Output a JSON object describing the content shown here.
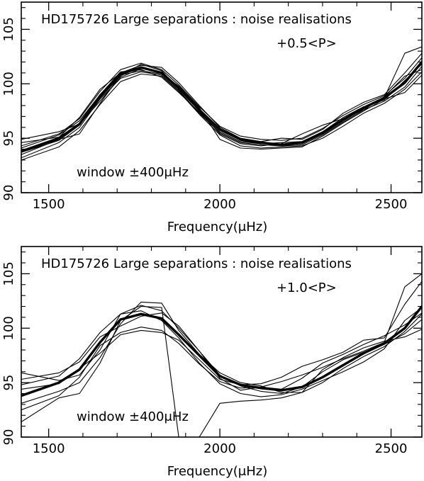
{
  "chart_data": [
    {
      "type": "line",
      "title": "HD175726 Large separations : noise realisations",
      "subtitle": "+0.5<P>",
      "annotation": "window ±400μHz",
      "xlabel": "Frequency(μHz)",
      "ylabel": "",
      "xlim": [
        1420,
        2590
      ],
      "ylim": [
        90,
        107.5
      ],
      "xticks": [
        1500,
        2000,
        2500
      ],
      "xtick_labels": [
        "1500",
        "2000",
        "2500"
      ],
      "yticks": [
        90,
        95,
        100,
        105
      ],
      "ytick_labels": [
        "90",
        "95",
        "100",
        "105"
      ],
      "grid": false,
      "x": [
        1420,
        1530,
        1590,
        1650,
        1710,
        1770,
        1830,
        1880,
        1940,
        2000,
        2060,
        2120,
        2180,
        2240,
        2300,
        2360,
        2420,
        2480,
        2540,
        2590
      ],
      "series": [
        {
          "values": [
            93.8,
            95.0,
            96.3,
            98.9,
            100.9,
            101.5,
            101.0,
            99.6,
            97.6,
            95.8,
            94.9,
            94.6,
            94.4,
            94.6,
            95.5,
            96.7,
            97.8,
            98.7,
            100.1,
            102.0
          ],
          "bold": true
        },
        {
          "values": [
            94.3,
            95.4,
            96.8,
            99.3,
            101.3,
            101.9,
            101.3,
            99.9,
            97.9,
            96.1,
            95.2,
            94.9,
            94.8,
            95.0,
            95.9,
            97.1,
            98.1,
            98.9,
            100.5,
            102.4
          ],
          "bold": false
        },
        {
          "values": [
            93.2,
            94.6,
            96.0,
            98.6,
            100.5,
            101.1,
            100.8,
            99.4,
            97.3,
            95.5,
            94.6,
            94.4,
            94.3,
            94.4,
            95.3,
            96.5,
            97.6,
            98.4,
            99.7,
            101.6
          ],
          "bold": false
        },
        {
          "values": [
            94.9,
            95.6,
            96.3,
            98.4,
            100.6,
            101.4,
            101.1,
            99.7,
            97.5,
            95.4,
            94.5,
            94.3,
            94.5,
            95.4,
            96.2,
            96.8,
            97.6,
            98.8,
            100.7,
            101.3
          ],
          "bold": false
        },
        {
          "values": [
            93.0,
            94.2,
            95.7,
            98.1,
            100.2,
            100.9,
            100.7,
            99.3,
            97.2,
            95.3,
            94.3,
            94.1,
            94.2,
            94.3,
            95.0,
            96.1,
            97.3,
            98.2,
            99.5,
            101.1
          ],
          "bold": false
        },
        {
          "values": [
            94.6,
            95.1,
            96.9,
            99.5,
            101.0,
            101.7,
            101.5,
            100.1,
            98.0,
            96.0,
            95.0,
            94.7,
            95.0,
            94.9,
            95.8,
            97.3,
            98.3,
            99.0,
            101.0,
            102.8
          ],
          "bold": false
        },
        {
          "values": [
            93.5,
            94.9,
            95.4,
            98.2,
            100.8,
            101.2,
            100.9,
            99.8,
            97.8,
            94.9,
            94.1,
            94.0,
            94.1,
            94.2,
            95.2,
            96.4,
            97.5,
            98.6,
            99.2,
            100.8
          ],
          "bold": false
        },
        {
          "values": [
            94.1,
            95.3,
            96.6,
            99.0,
            101.1,
            101.3,
            100.6,
            99.2,
            97.4,
            95.6,
            94.7,
            94.5,
            94.6,
            94.7,
            95.6,
            96.9,
            97.9,
            98.5,
            100.3,
            101.8
          ],
          "bold": false
        },
        {
          "values": [
            93.7,
            94.8,
            96.2,
            98.7,
            100.7,
            101.8,
            101.2,
            99.5,
            97.7,
            95.9,
            94.8,
            94.5,
            94.4,
            94.5,
            95.4,
            96.6,
            97.7,
            98.7,
            102.8,
            103.4
          ],
          "bold": false
        }
      ]
    },
    {
      "type": "line",
      "title": "HD175726 Large separations : noise realisations",
      "subtitle": "+1.0<P>",
      "annotation": "window ±400μHz",
      "xlabel": "Frequency(μHz)",
      "ylabel": "",
      "xlim": [
        1420,
        2590
      ],
      "ylim": [
        90,
        107.5
      ],
      "xticks": [
        1500,
        2000,
        2500
      ],
      "xtick_labels": [
        "1500",
        "2000",
        "2500"
      ],
      "yticks": [
        90,
        95,
        100,
        105
      ],
      "ytick_labels": [
        "90",
        "95",
        "100",
        "105"
      ],
      "grid": false,
      "x": [
        1420,
        1530,
        1590,
        1650,
        1710,
        1770,
        1830,
        1880,
        1940,
        2000,
        2060,
        2120,
        2180,
        2240,
        2300,
        2360,
        2420,
        2480,
        2540,
        2590
      ],
      "series": [
        {
          "values": [
            93.8,
            95.0,
            96.2,
            98.7,
            100.8,
            101.3,
            100.9,
            99.4,
            97.5,
            95.6,
            94.8,
            94.5,
            94.3,
            94.6,
            95.5,
            96.6,
            97.7,
            98.6,
            100.0,
            102.0
          ],
          "bold": true
        },
        {
          "values": [
            95.9,
            95.2,
            95.7,
            98.0,
            101.3,
            102.1,
            101.6,
            100.0,
            97.9,
            95.7,
            94.7,
            94.2,
            94.0,
            94.6,
            96.0,
            97.1,
            97.8,
            98.5,
            99.5,
            100.8
          ],
          "bold": false
        },
        {
          "values": [
            91.4,
            93.6,
            94.0,
            96.8,
            100.7,
            102.0,
            101.9,
            90.0,
            90.0,
            93.1,
            93.3,
            93.4,
            93.6,
            94.1,
            96.2,
            97.3,
            98.2,
            98.8,
            99.2,
            99.9
          ],
          "bold": false
        },
        {
          "values": [
            95.3,
            95.9,
            96.9,
            99.2,
            100.2,
            101.1,
            101.4,
            100.2,
            97.9,
            95.4,
            94.3,
            94.6,
            95.1,
            95.7,
            96.4,
            97.2,
            97.9,
            98.7,
            103.8,
            105.0
          ],
          "bold": false
        },
        {
          "values": [
            94.8,
            95.6,
            97.2,
            99.6,
            101.3,
            101.6,
            100.7,
            99.1,
            96.8,
            94.9,
            94.0,
            93.7,
            93.9,
            94.4,
            95.2,
            96.0,
            96.9,
            98.1,
            100.7,
            101.9
          ],
          "bold": false
        },
        {
          "values": [
            92.5,
            93.8,
            95.5,
            98.4,
            99.6,
            100.1,
            99.8,
            98.6,
            96.7,
            95.1,
            94.5,
            94.6,
            94.4,
            95.4,
            96.8,
            97.6,
            98.5,
            99.3,
            100.3,
            101.4
          ],
          "bold": false
        },
        {
          "values": [
            94.4,
            94.9,
            96.3,
            97.7,
            99.4,
            99.8,
            99.6,
            98.9,
            97.1,
            95.3,
            94.8,
            94.9,
            95.5,
            96.5,
            97.1,
            97.8,
            98.9,
            99.1,
            102.2,
            104.3
          ],
          "bold": false
        },
        {
          "values": [
            93.1,
            94.2,
            95.0,
            97.3,
            100.4,
            102.4,
            102.3,
            99.8,
            97.6,
            95.9,
            95.0,
            94.7,
            94.1,
            94.1,
            95.0,
            96.3,
            97.4,
            98.3,
            99.7,
            101.3
          ],
          "bold": false
        }
      ]
    }
  ]
}
